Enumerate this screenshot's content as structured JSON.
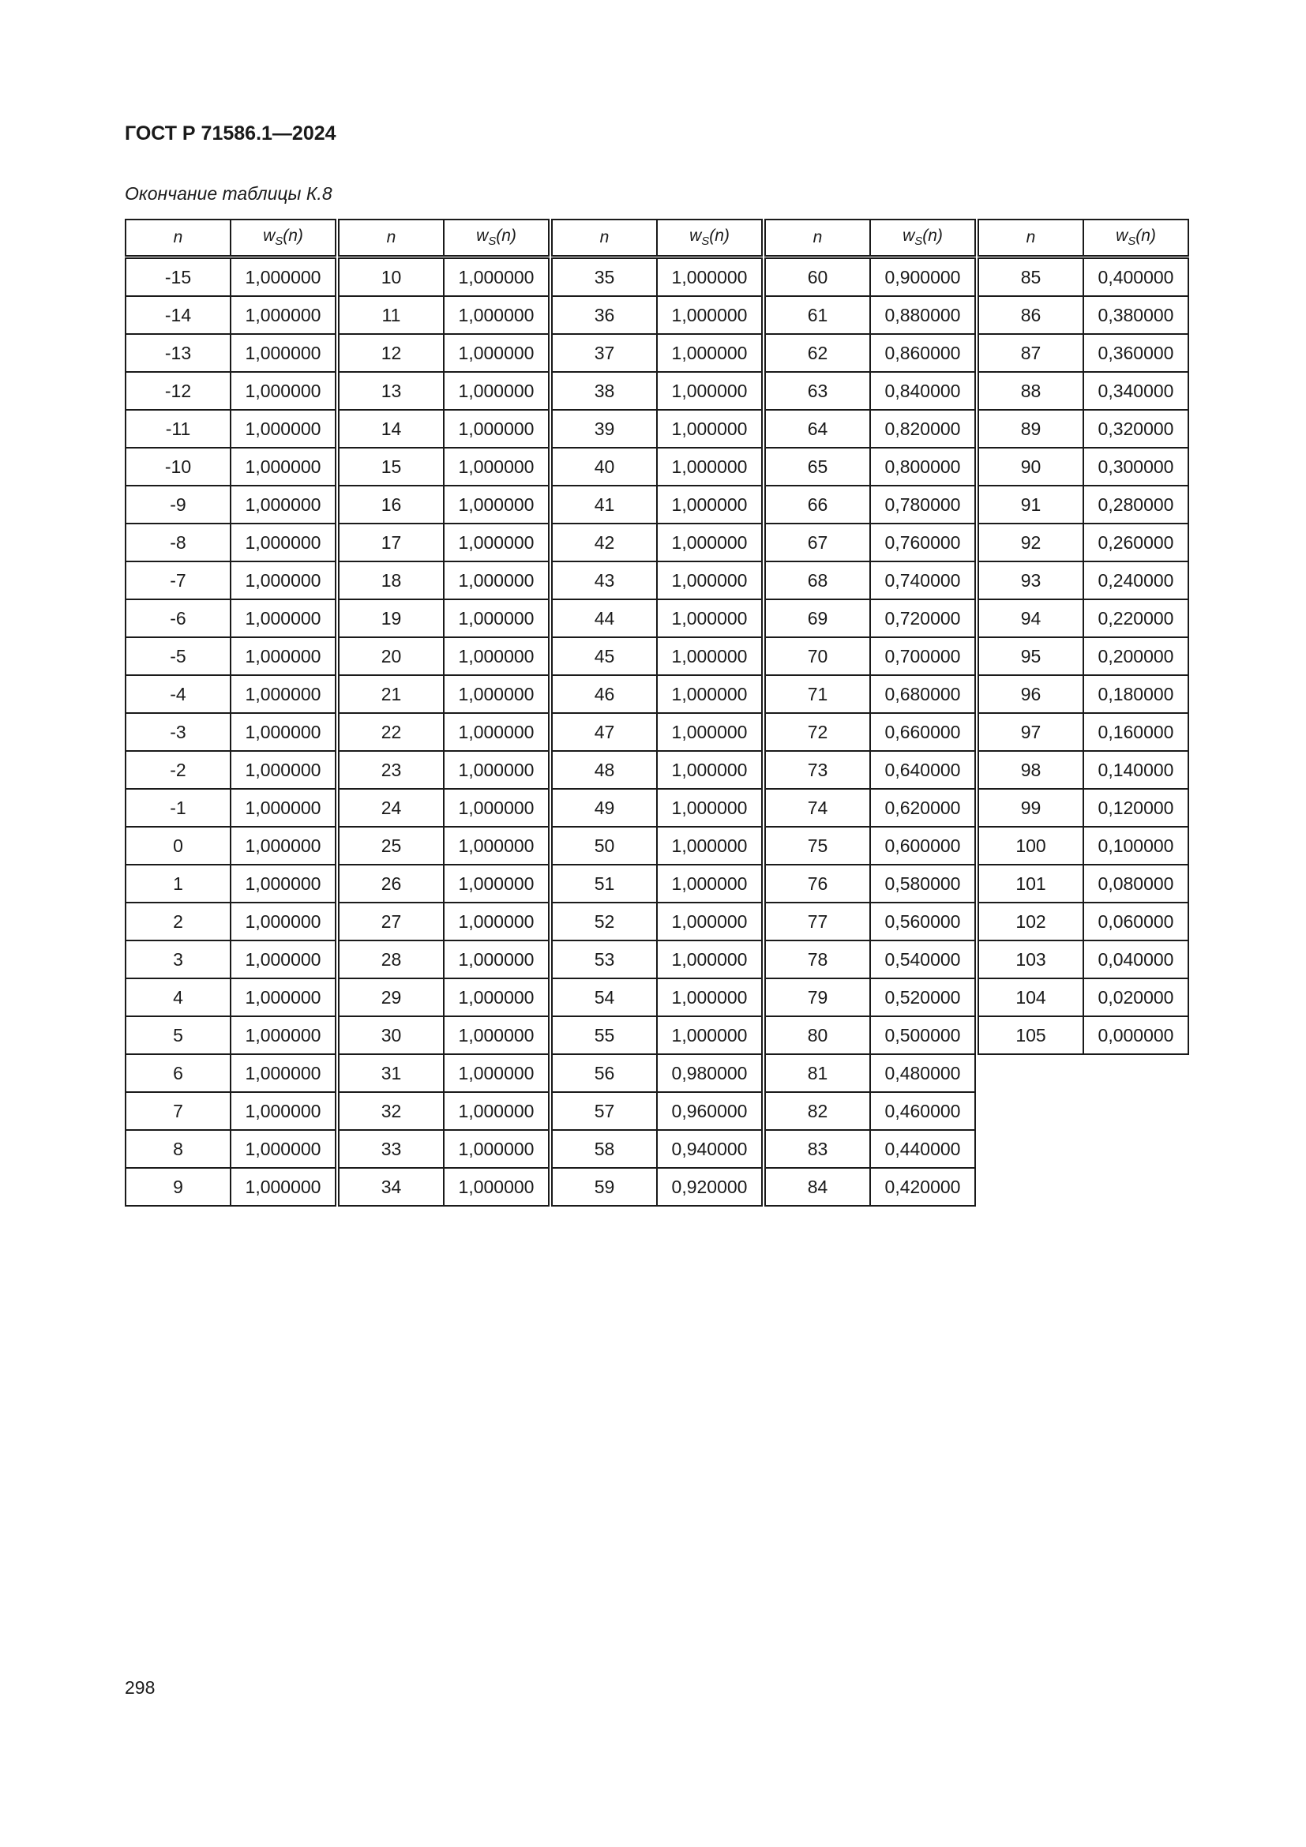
{
  "header": {
    "doc_title": "ГОСТ Р 71586.1—2024"
  },
  "caption": "Окончание таблицы К.8",
  "table": {
    "columns": {
      "n": "n",
      "w_base": "w",
      "w_sub": "S",
      "w_arg": "(n)"
    },
    "groups": [
      [
        [
          "-15",
          "1,000000"
        ],
        [
          "-14",
          "1,000000"
        ],
        [
          "-13",
          "1,000000"
        ],
        [
          "-12",
          "1,000000"
        ],
        [
          "-11",
          "1,000000"
        ],
        [
          "-10",
          "1,000000"
        ],
        [
          "-9",
          "1,000000"
        ],
        [
          "-8",
          "1,000000"
        ],
        [
          "-7",
          "1,000000"
        ],
        [
          "-6",
          "1,000000"
        ],
        [
          "-5",
          "1,000000"
        ],
        [
          "-4",
          "1,000000"
        ],
        [
          "-3",
          "1,000000"
        ],
        [
          "-2",
          "1,000000"
        ],
        [
          "-1",
          "1,000000"
        ],
        [
          "0",
          "1,000000"
        ],
        [
          "1",
          "1,000000"
        ],
        [
          "2",
          "1,000000"
        ],
        [
          "3",
          "1,000000"
        ],
        [
          "4",
          "1,000000"
        ],
        [
          "5",
          "1,000000"
        ],
        [
          "6",
          "1,000000"
        ],
        [
          "7",
          "1,000000"
        ],
        [
          "8",
          "1,000000"
        ],
        [
          "9",
          "1,000000"
        ]
      ],
      [
        [
          "10",
          "1,000000"
        ],
        [
          "11",
          "1,000000"
        ],
        [
          "12",
          "1,000000"
        ],
        [
          "13",
          "1,000000"
        ],
        [
          "14",
          "1,000000"
        ],
        [
          "15",
          "1,000000"
        ],
        [
          "16",
          "1,000000"
        ],
        [
          "17",
          "1,000000"
        ],
        [
          "18",
          "1,000000"
        ],
        [
          "19",
          "1,000000"
        ],
        [
          "20",
          "1,000000"
        ],
        [
          "21",
          "1,000000"
        ],
        [
          "22",
          "1,000000"
        ],
        [
          "23",
          "1,000000"
        ],
        [
          "24",
          "1,000000"
        ],
        [
          "25",
          "1,000000"
        ],
        [
          "26",
          "1,000000"
        ],
        [
          "27",
          "1,000000"
        ],
        [
          "28",
          "1,000000"
        ],
        [
          "29",
          "1,000000"
        ],
        [
          "30",
          "1,000000"
        ],
        [
          "31",
          "1,000000"
        ],
        [
          "32",
          "1,000000"
        ],
        [
          "33",
          "1,000000"
        ],
        [
          "34",
          "1,000000"
        ]
      ],
      [
        [
          "35",
          "1,000000"
        ],
        [
          "36",
          "1,000000"
        ],
        [
          "37",
          "1,000000"
        ],
        [
          "38",
          "1,000000"
        ],
        [
          "39",
          "1,000000"
        ],
        [
          "40",
          "1,000000"
        ],
        [
          "41",
          "1,000000"
        ],
        [
          "42",
          "1,000000"
        ],
        [
          "43",
          "1,000000"
        ],
        [
          "44",
          "1,000000"
        ],
        [
          "45",
          "1,000000"
        ],
        [
          "46",
          "1,000000"
        ],
        [
          "47",
          "1,000000"
        ],
        [
          "48",
          "1,000000"
        ],
        [
          "49",
          "1,000000"
        ],
        [
          "50",
          "1,000000"
        ],
        [
          "51",
          "1,000000"
        ],
        [
          "52",
          "1,000000"
        ],
        [
          "53",
          "1,000000"
        ],
        [
          "54",
          "1,000000"
        ],
        [
          "55",
          "1,000000"
        ],
        [
          "56",
          "0,980000"
        ],
        [
          "57",
          "0,960000"
        ],
        [
          "58",
          "0,940000"
        ],
        [
          "59",
          "0,920000"
        ]
      ],
      [
        [
          "60",
          "0,900000"
        ],
        [
          "61",
          "0,880000"
        ],
        [
          "62",
          "0,860000"
        ],
        [
          "63",
          "0,840000"
        ],
        [
          "64",
          "0,820000"
        ],
        [
          "65",
          "0,800000"
        ],
        [
          "66",
          "0,780000"
        ],
        [
          "67",
          "0,760000"
        ],
        [
          "68",
          "0,740000"
        ],
        [
          "69",
          "0,720000"
        ],
        [
          "70",
          "0,700000"
        ],
        [
          "71",
          "0,680000"
        ],
        [
          "72",
          "0,660000"
        ],
        [
          "73",
          "0,640000"
        ],
        [
          "74",
          "0,620000"
        ],
        [
          "75",
          "0,600000"
        ],
        [
          "76",
          "0,580000"
        ],
        [
          "77",
          "0,560000"
        ],
        [
          "78",
          "0,540000"
        ],
        [
          "79",
          "0,520000"
        ],
        [
          "80",
          "0,500000"
        ],
        [
          "81",
          "0,480000"
        ],
        [
          "82",
          "0,460000"
        ],
        [
          "83",
          "0,440000"
        ],
        [
          "84",
          "0,420000"
        ]
      ],
      [
        [
          "85",
          "0,400000"
        ],
        [
          "86",
          "0,380000"
        ],
        [
          "87",
          "0,360000"
        ],
        [
          "88",
          "0,340000"
        ],
        [
          "89",
          "0,320000"
        ],
        [
          "90",
          "0,300000"
        ],
        [
          "91",
          "0,280000"
        ],
        [
          "92",
          "0,260000"
        ],
        [
          "93",
          "0,240000"
        ],
        [
          "94",
          "0,220000"
        ],
        [
          "95",
          "0,200000"
        ],
        [
          "96",
          "0,180000"
        ],
        [
          "97",
          "0,160000"
        ],
        [
          "98",
          "0,140000"
        ],
        [
          "99",
          "0,120000"
        ],
        [
          "100",
          "0,100000"
        ],
        [
          "101",
          "0,080000"
        ],
        [
          "102",
          "0,060000"
        ],
        [
          "103",
          "0,040000"
        ],
        [
          "104",
          "0,020000"
        ],
        [
          "105",
          "0,000000"
        ]
      ]
    ]
  },
  "footer": {
    "page_number": "298"
  }
}
